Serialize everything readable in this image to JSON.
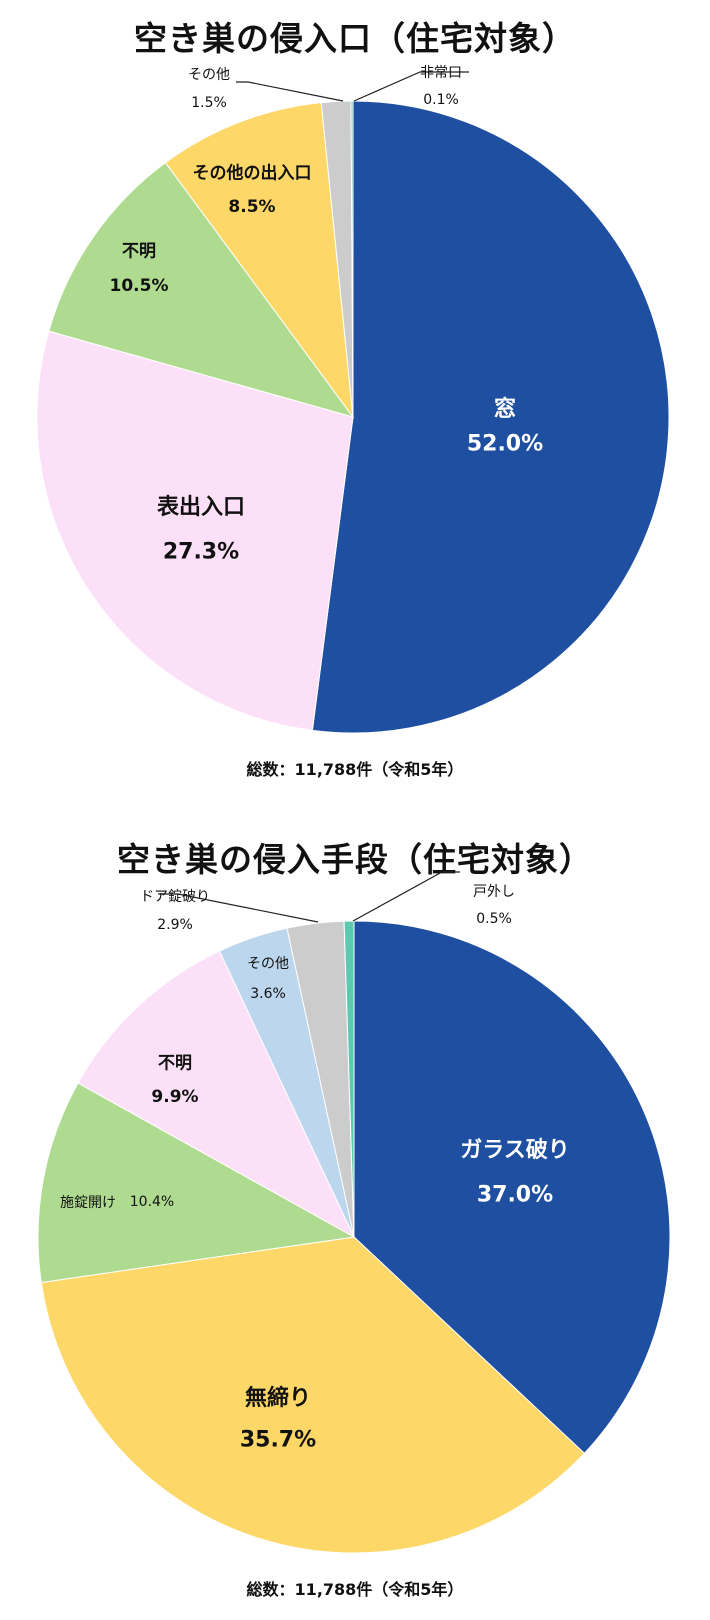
{
  "chart_data": [
    {
      "type": "pie",
      "title": "空き巣の侵入口（住宅対象）",
      "footnote": "総数：11,788件（令和5年）",
      "slices": [
        {
          "label": "窓",
          "value": 52.0,
          "display": "52.0%",
          "color": "#1f4fa0"
        },
        {
          "label": "表出入口",
          "value": 27.3,
          "display": "27.3%",
          "color": "#fce0f7"
        },
        {
          "label": "不明",
          "value": 10.5,
          "display": "10.5%",
          "color": "#aedb8f"
        },
        {
          "label": "その他の出入口",
          "value": 8.5,
          "display": "8.5%",
          "color": "#fdd767"
        },
        {
          "label": "その他",
          "value": 1.5,
          "display": "1.5%",
          "color": "#cccccc"
        },
        {
          "label": "非常口",
          "value": 0.1,
          "display": "0.1%",
          "color": "#5ec9b0"
        }
      ]
    },
    {
      "type": "pie",
      "title": "空き巣の侵入手段（住宅対象）",
      "footnote": "総数：11,788件（令和5年）",
      "slices": [
        {
          "label": "ガラス破り",
          "value": 37.0,
          "display": "37.0%",
          "color": "#1f4fa0"
        },
        {
          "label": "無締り",
          "value": 35.7,
          "display": "35.7%",
          "color": "#fdd767"
        },
        {
          "label": "施錠開け",
          "value": 10.4,
          "display": "10.4%",
          "color": "#aedb8f"
        },
        {
          "label": "不明",
          "value": 9.9,
          "display": "9.9%",
          "color": "#fce0f7"
        },
        {
          "label": "その他",
          "value": 3.6,
          "display": "3.6%",
          "color": "#bcd6ee"
        },
        {
          "label": "ドア錠破り",
          "value": 2.9,
          "display": "2.9%",
          "color": "#cccccc"
        },
        {
          "label": "戸外し",
          "value": 0.5,
          "display": "0.5%",
          "color": "#5ec9b0"
        }
      ]
    }
  ]
}
